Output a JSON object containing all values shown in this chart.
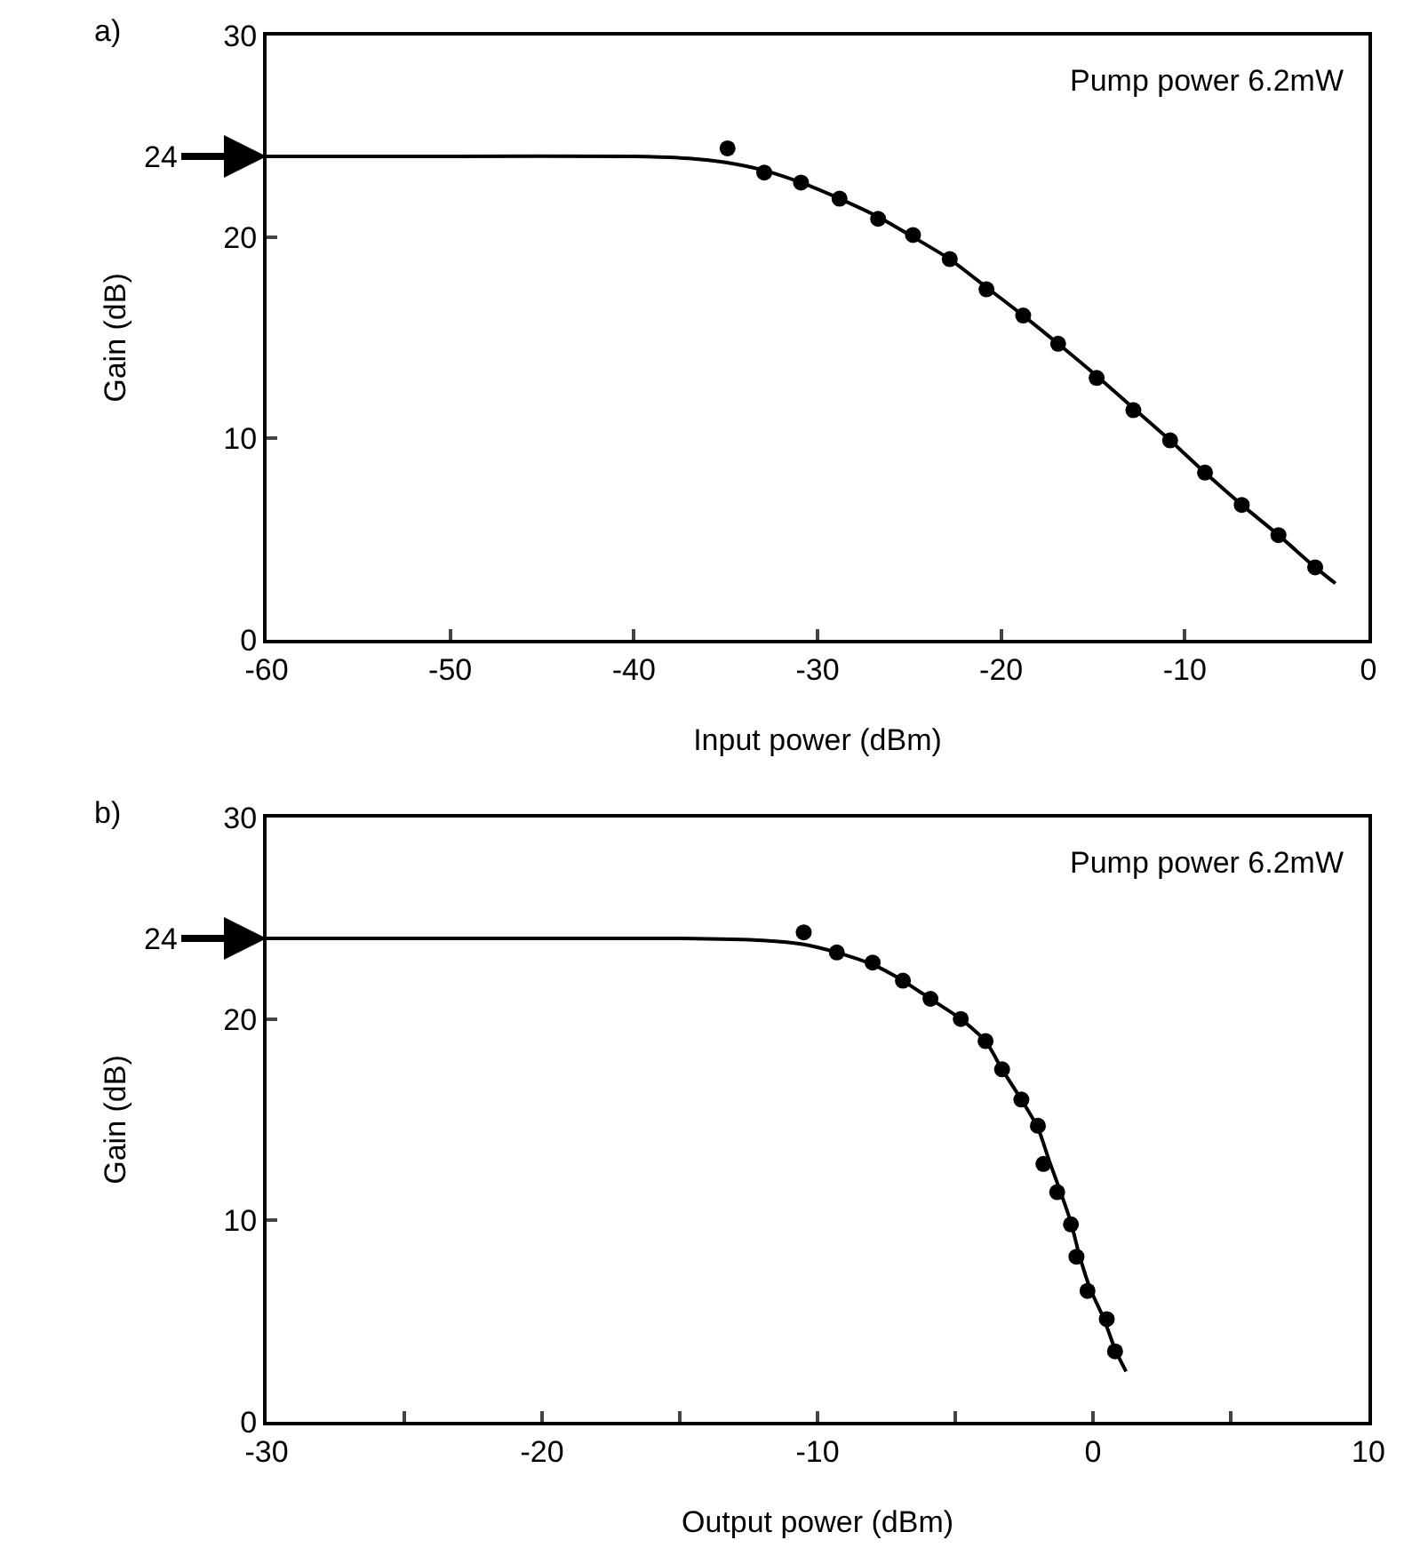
{
  "chart_data": [
    {
      "type": "scatter",
      "title": "a)",
      "xlabel": "Input power (dBm)",
      "ylabel": "Gain (dB)",
      "xlim": [
        -60,
        0
      ],
      "xticks": [
        -60,
        -50,
        -40,
        -30,
        -20,
        -10,
        0
      ],
      "ylim": [
        0,
        30
      ],
      "yticks": [
        0,
        10,
        20,
        30
      ],
      "grid": false,
      "marker": "circle",
      "series": [
        {
          "color": "#000000",
          "x": [
            -34.9,
            -32.9,
            -30.9,
            -28.8,
            -26.7,
            -24.8,
            -22.8,
            -20.8,
            -18.8,
            -16.9,
            -14.8,
            -12.8,
            -10.8,
            -8.9,
            -6.9,
            -4.9,
            -2.9
          ],
          "values": [
            24.4,
            23.2,
            22.7,
            21.9,
            20.9,
            20.1,
            18.9,
            17.4,
            16.1,
            14.7,
            13.0,
            11.4,
            9.9,
            8.3,
            6.7,
            5.2,
            3.6
          ]
        },
        {
          "type": "line",
          "color": "#000000",
          "marker": "none",
          "line_style": "solid",
          "x": [
            -60,
            -50,
            -40,
            -37,
            -35,
            -32.9,
            -30.9,
            -28.8,
            -26.7,
            -24.8,
            -22.8,
            -20.8,
            -18.8,
            -16.9,
            -14.8,
            -12.8,
            -10.8,
            -8.9,
            -6.9,
            -4.9,
            -2.9,
            -1.8
          ],
          "values": [
            24,
            24,
            24,
            23.9,
            23.7,
            23.3,
            22.7,
            21.9,
            21,
            20,
            18.9,
            17.5,
            16.1,
            14.7,
            13.1,
            11.5,
            9.9,
            8.3,
            6.7,
            5.2,
            3.6,
            2.8
          ]
        }
      ],
      "annotations": [
        "Pump power 6.2mW",
        {
          "text": "24",
          "x": -60,
          "y": 24
        }
      ]
    },
    {
      "type": "scatter",
      "title": "b)",
      "xlabel": "Output power (dBm)",
      "ylabel": "Gain (dB)",
      "xlim": [
        -30,
        10
      ],
      "xticks": [
        -30,
        {
          "value": -25,
          "label": null
        },
        -20,
        {
          "value": -15,
          "label": null
        },
        -10,
        {
          "value": -5,
          "label": null
        },
        0,
        {
          "value": 5,
          "label": null
        },
        10
      ],
      "ylim": [
        0,
        30
      ],
      "yticks": [
        0,
        10,
        20,
        30
      ],
      "grid": false,
      "marker": "circle",
      "series": [
        {
          "color": "#000000",
          "x": [
            -10.5,
            -9.3,
            -8.0,
            -6.9,
            -5.9,
            -4.8,
            -3.9,
            -3.3,
            -2.6,
            -2.0,
            -1.8,
            -1.3,
            -0.8,
            -0.6,
            -0.2,
            0.5,
            0.8
          ],
          "values": [
            24.3,
            23.3,
            22.8,
            21.9,
            21.0,
            20.0,
            18.9,
            17.5,
            16.0,
            14.7,
            12.8,
            11.4,
            9.8,
            8.2,
            6.5,
            5.1,
            3.5
          ]
        },
        {
          "type": "line",
          "color": "#000000",
          "marker": "none",
          "line_style": "solid",
          "x": [
            -30,
            -20,
            -15,
            -12,
            -10.5,
            -9.3,
            -8,
            -6.9,
            -5.9,
            -4.8,
            -3.9,
            -3.3,
            -2.6,
            -2.0,
            -1.6,
            -1.2,
            -0.8,
            -0.5,
            -0.1,
            0.4,
            0.8,
            1.2
          ],
          "values": [
            24,
            24,
            24,
            23.9,
            23.7,
            23.3,
            22.7,
            21.9,
            21,
            20,
            18.9,
            17.5,
            16,
            14.6,
            13,
            11.5,
            9.9,
            8.3,
            6.6,
            5.1,
            3.6,
            2.5
          ]
        }
      ],
      "annotations": [
        "Pump power 6.2mW",
        {
          "text": "24",
          "x": -30,
          "y": 24
        }
      ]
    }
  ]
}
